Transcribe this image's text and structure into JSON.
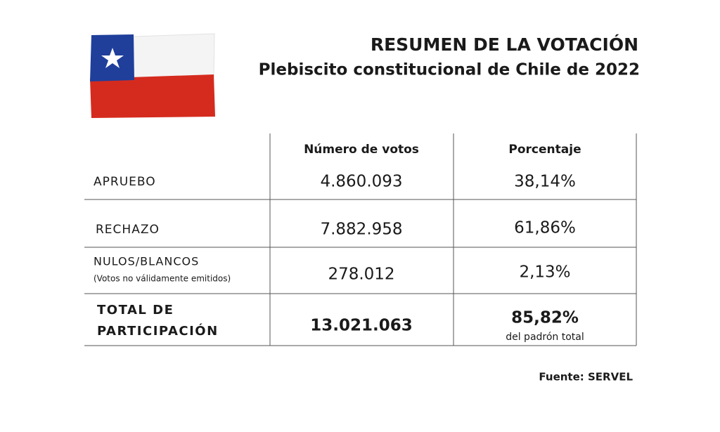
{
  "header": {
    "title": "RESUMEN DE LA VOTACIÓN",
    "subtitle": "Plebiscito constitucional de Chile de 2022"
  },
  "table": {
    "columns": [
      "Número de votos",
      "Porcentaje"
    ],
    "rows": [
      {
        "label": "APRUEBO",
        "votes": "4.860.093",
        "percent": "38,14%"
      },
      {
        "label": "RECHAZO",
        "votes": "7.882.958",
        "percent": "61,86%"
      },
      {
        "label": "NULOS/BLANCOS",
        "sublabel": "(Votos no válidamente emitidos)",
        "votes": "278.012",
        "percent": "2,13%"
      },
      {
        "label": "TOTAL DE",
        "label2": "PARTICIPACIÓN",
        "votes": "13.021.063",
        "percent": "85,82%",
        "note": "del padrón total"
      }
    ]
  },
  "source": "Fuente: SERVEL"
}
